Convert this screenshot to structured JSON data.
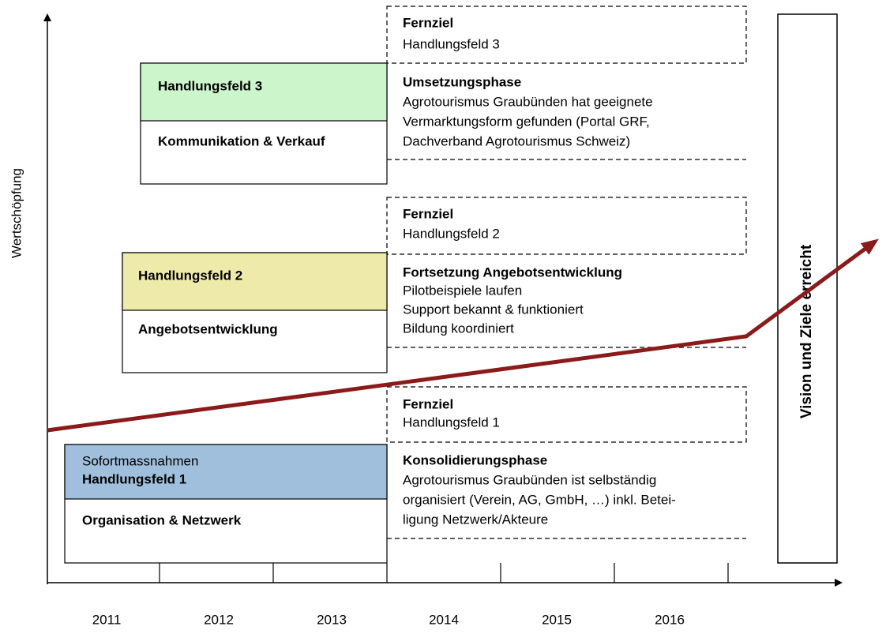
{
  "y_axis_label": "Wertschöpfung",
  "years": [
    "2011",
    "2012",
    "2013",
    "2014",
    "2015",
    "2016"
  ],
  "fields": [
    {
      "title": "Handlungsfeld 3",
      "subtitle": "Kommunikation & Verkauf"
    },
    {
      "title": "Handlungsfeld 2",
      "subtitle": "Angebotsentwicklung"
    },
    {
      "prefix": "Sofortmassnahmen",
      "title": "Handlungsfeld 1",
      "subtitle": "Organisation & Netzwerk"
    }
  ],
  "goals": [
    {
      "heading": "Fernziel",
      "label": "Handlungsfeld 3"
    },
    {
      "heading": "Fernziel",
      "label": "Handlungsfeld 2"
    },
    {
      "heading": "Fernziel",
      "label": "Handlungsfeld 1"
    }
  ],
  "phases": [
    {
      "heading": "Umsetzungsphase",
      "lines": [
        "Agrotourismus Graubünden hat geeignete",
        "Vermarktungsform gefunden (Portal GRF,",
        "Dachverband Agrotourismus Schweiz)"
      ]
    },
    {
      "heading": "Fortsetzung Angebotsentwicklung",
      "lines": [
        "Pilotbeispiele laufen",
        "Support bekannt & funktioniert",
        "Bildung koordiniert"
      ]
    },
    {
      "heading": "Konsolidierungsphase",
      "lines": [
        "Agrotourismus Graubünden ist selbständig",
        "organisiert (Verein, AG, GmbH, …) inkl. Betei-",
        "ligung Netzwerk/Akteure"
      ]
    }
  ],
  "vision": "Vision und Ziele erreicht"
}
